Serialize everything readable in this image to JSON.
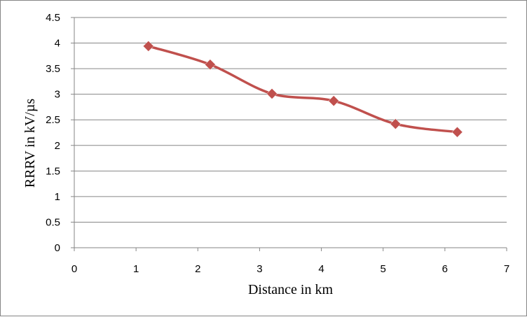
{
  "chart_data": {
    "type": "line",
    "title": "",
    "xlabel": "Distance in km",
    "ylabel": "RRRV in kV/µs",
    "xlim": [
      0,
      7
    ],
    "ylim": [
      0,
      4.5
    ],
    "x_ticks": [
      "0",
      "1",
      "2",
      "3",
      "4",
      "5",
      "6",
      "7"
    ],
    "y_ticks": [
      "0",
      "0.5",
      "1",
      "1.5",
      "2",
      "2.5",
      "3",
      "3.5",
      "4",
      "4.5"
    ],
    "grid": "horizontal",
    "legend": "none",
    "smooth": true,
    "marker": "diamond",
    "series_color": "#C0504D",
    "gridline_color": "#868686",
    "series": [
      {
        "x": [
          1.2,
          2.2,
          3.2,
          4.2,
          5.2,
          6.2
        ],
        "y": [
          3.94,
          3.58,
          3.01,
          2.87,
          2.42,
          2.26
        ]
      }
    ]
  }
}
